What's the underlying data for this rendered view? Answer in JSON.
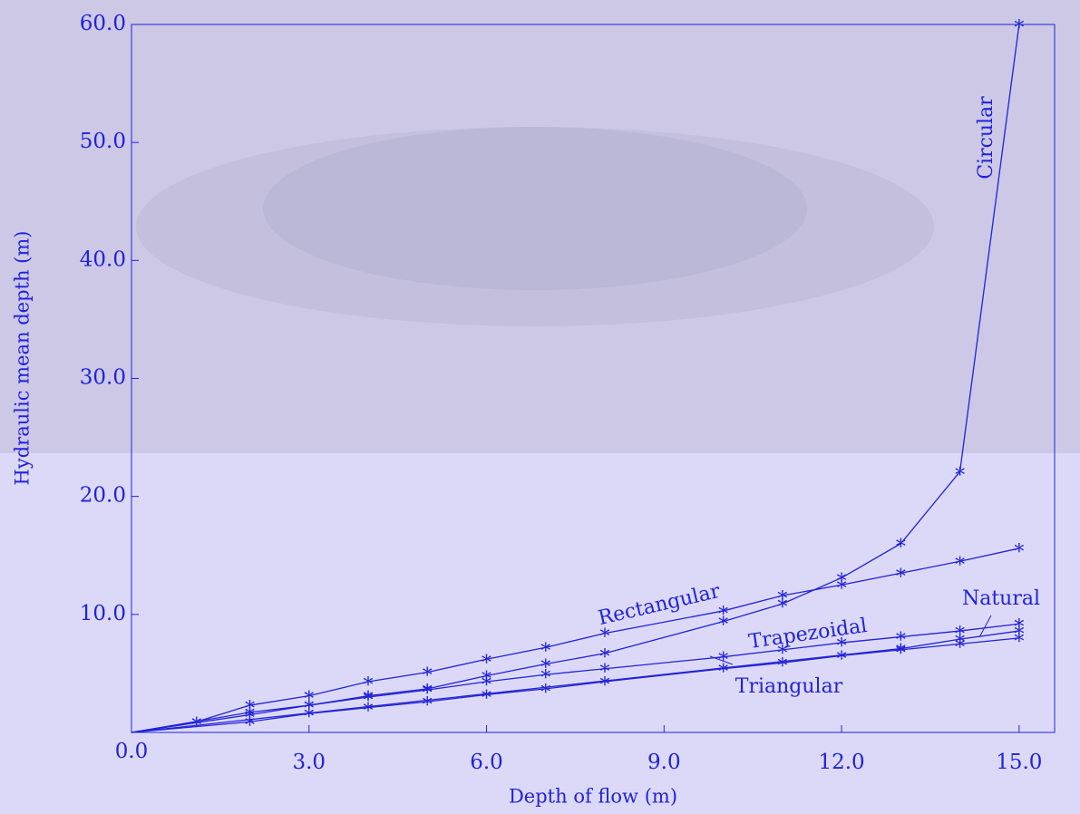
{
  "chart_data": {
    "type": "line",
    "xlabel": "Depth of flow (m)",
    "ylabel": "Hydraulic mean depth (m)",
    "xlim": [
      0,
      15.6
    ],
    "ylim": [
      0,
      60
    ],
    "xticks": [
      {
        "value": 0,
        "label": "0.0"
      },
      {
        "value": 3,
        "label": "3.0"
      },
      {
        "value": 6,
        "label": "6.0"
      },
      {
        "value": 9,
        "label": "9.0"
      },
      {
        "value": 12,
        "label": "12.0"
      },
      {
        "value": 15,
        "label": "15.0"
      }
    ],
    "yticks": [
      {
        "value": 10,
        "label": "10.0"
      },
      {
        "value": 20,
        "label": "20.0"
      },
      {
        "value": 30,
        "label": "30.0"
      },
      {
        "value": 40,
        "label": "40.0"
      },
      {
        "value": 50,
        "label": "50.0"
      },
      {
        "value": 60,
        "label": "60.0"
      }
    ],
    "series": [
      {
        "name": "Rectangular",
        "color": "#2222d8",
        "x": [
          0,
          1.1,
          2,
          3,
          4,
          5,
          6,
          7,
          8,
          10,
          11,
          12,
          13,
          14,
          15
        ],
        "values": [
          0,
          0.9,
          2.3,
          3.1,
          4.3,
          5.1,
          6.2,
          7.2,
          8.4,
          10.3,
          11.6,
          12.5,
          13.5,
          14.5,
          15.6
        ]
      },
      {
        "name": "Circular",
        "color": "#2222d8",
        "x": [
          0,
          2,
          3,
          4,
          5,
          6,
          7,
          8,
          10,
          11,
          12,
          13,
          14,
          15
        ],
        "values": [
          0,
          1.7,
          2.3,
          3.1,
          3.7,
          4.8,
          5.8,
          6.7,
          9.4,
          10.9,
          13.1,
          16.0,
          22.1,
          60
        ]
      },
      {
        "name": "Trapezoidal",
        "color": "#2222d8",
        "x": [
          0,
          2,
          3,
          4,
          5,
          6,
          7,
          8,
          10,
          11,
          12,
          13,
          14,
          15
        ],
        "values": [
          0,
          1.5,
          2.3,
          3.0,
          3.6,
          4.3,
          4.9,
          5.4,
          6.4,
          7.0,
          7.6,
          8.1,
          8.6,
          9.2
        ]
      },
      {
        "name": "Natural",
        "color": "#2222d8",
        "x": [
          0,
          13,
          14,
          15
        ],
        "values": [
          0,
          7.1,
          7.9,
          8.6
        ]
      },
      {
        "name": "Triangular",
        "color": "#2222d8",
        "x": [
          0,
          2,
          3,
          4,
          5,
          6,
          7,
          8,
          10,
          11,
          12,
          13,
          14,
          15
        ],
        "values": [
          0,
          0.9,
          1.6,
          2.1,
          2.6,
          3.2,
          3.7,
          4.3,
          5.4,
          5.9,
          6.5,
          7.0,
          7.5,
          8.0
        ]
      }
    ]
  }
}
